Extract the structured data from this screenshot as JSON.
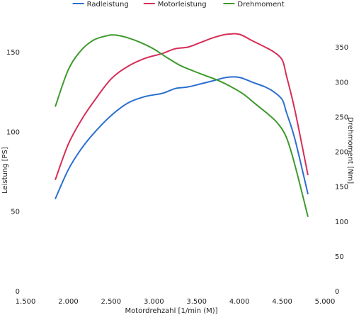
{
  "chart_data": {
    "type": "line",
    "title": "",
    "xlabel": "Motordrehzahl [1/min (M)]",
    "ylabel": "Leistung [PS]",
    "y2label": "Drehmoment [Nm]",
    "xlim": [
      1500,
      5000
    ],
    "ylim": [
      0,
      175
    ],
    "y2lim": [
      0,
      400
    ],
    "xticks": [
      1500,
      2000,
      2500,
      3000,
      3500,
      4000,
      4500,
      5000
    ],
    "xtick_labels": [
      "1.500",
      "2.000",
      "2.500",
      "3.000",
      "3.500",
      "4.000",
      "4.500",
      "5.000"
    ],
    "yticks": [
      0,
      50,
      100,
      150
    ],
    "y2ticks": [
      0,
      50,
      100,
      150,
      200,
      250,
      300,
      350
    ],
    "grid": false,
    "legend_position": "top",
    "series": [
      {
        "name": "Radleistung",
        "axis": "left",
        "color": "#2b6fd0",
        "x": [
          1850,
          2000,
          2150,
          2300,
          2500,
          2700,
          2900,
          3100,
          3250,
          3400,
          3550,
          3700,
          3850,
          4000,
          4150,
          4300,
          4400,
          4500,
          4550,
          4650,
          4800
        ],
        "y": [
          58,
          76,
          89,
          99,
          110,
          118,
          122,
          124,
          127,
          128,
          130,
          132,
          134,
          134,
          131,
          128,
          125,
          120,
          112,
          95,
          61
        ]
      },
      {
        "name": "Motorleistung",
        "axis": "left",
        "color": "#d62d58",
        "x": [
          1850,
          2000,
          2150,
          2300,
          2500,
          2700,
          2900,
          3100,
          3250,
          3400,
          3550,
          3700,
          3850,
          4000,
          4150,
          4300,
          4400,
          4500,
          4550,
          4650,
          4800
        ],
        "y": [
          70,
          92,
          107,
          119,
          133,
          141,
          146,
          149,
          152,
          153,
          156,
          159,
          161,
          161,
          157,
          153,
          150,
          145,
          135,
          113,
          73
        ]
      },
      {
        "name": "Drehmoment",
        "axis": "right",
        "color": "#3e9a2c",
        "x": [
          1850,
          2000,
          2150,
          2300,
          2450,
          2550,
          2700,
          2850,
          3000,
          3150,
          3300,
          3450,
          3600,
          3750,
          3900,
          4050,
          4200,
          4350,
          4450,
          4550,
          4650,
          4800
        ],
        "y": [
          265,
          317,
          345,
          360,
          366,
          367,
          363,
          356,
          347,
          335,
          324,
          316,
          309,
          302,
          293,
          282,
          267,
          252,
          240,
          220,
          180,
          107
        ]
      }
    ]
  }
}
